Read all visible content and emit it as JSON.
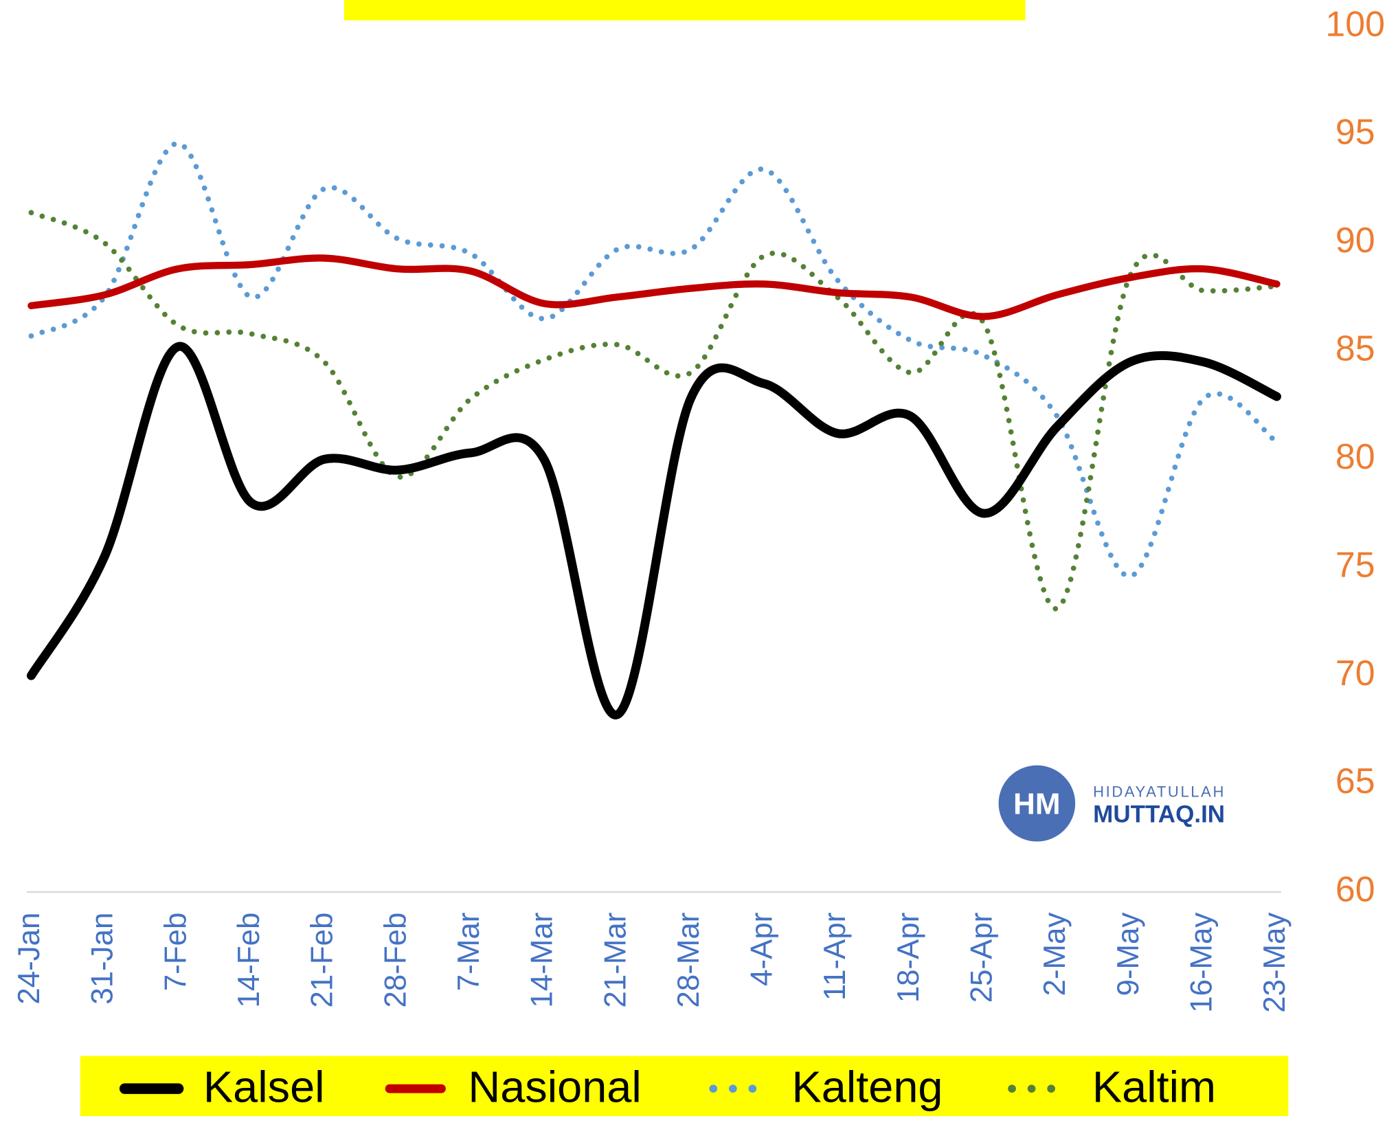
{
  "chart_data": {
    "type": "line",
    "categories": [
      "24-Jan",
      "31-Jan",
      "7-Feb",
      "14-Feb",
      "21-Feb",
      "28-Feb",
      "7-Mar",
      "14-Mar",
      "21-Mar",
      "28-Mar",
      "4-Apr",
      "11-Apr",
      "18-Apr",
      "25-Apr",
      "2-May",
      "9-May",
      "16-May",
      "23-May"
    ],
    "series": [
      {
        "name": "Kalsel",
        "color": "#000000",
        "values": [
          70,
          75.5,
          85.2,
          78,
          80,
          79.5,
          80.3,
          80,
          68.2,
          82.8,
          83.5,
          81.2,
          82,
          77.5,
          81.5,
          84.5,
          84.5,
          82.9
        ]
      },
      {
        "name": "Nasional",
        "color": "#c00000",
        "values": [
          87.1,
          87.6,
          88.8,
          89.0,
          89.3,
          88.8,
          88.7,
          87.2,
          87.5,
          87.9,
          88.1,
          87.7,
          87.5,
          86.6,
          87.6,
          88.4,
          88.8,
          88.1
        ]
      },
      {
        "name": "Kalteng",
        "color": "#5b9bd5",
        "values": [
          85.7,
          87.5,
          94.6,
          87.5,
          92.5,
          90.2,
          89.5,
          86.5,
          89.7,
          89.7,
          93.4,
          88.3,
          85.5,
          84.8,
          82.0,
          74.6,
          82.8,
          80.8
        ]
      },
      {
        "name": "Kaltim",
        "color": "#548235",
        "values": [
          91.4,
          90.0,
          86.2,
          85.8,
          84.5,
          79.2,
          82.8,
          84.6,
          85.3,
          84.0,
          89.4,
          87.5,
          84.0,
          86.3,
          73.1,
          88.5,
          87.8,
          88.0
        ]
      }
    ],
    "ylim": [
      60,
      100
    ],
    "yticks": [
      60,
      65,
      70,
      75,
      80,
      85,
      90,
      95,
      100
    ],
    "y_axis_side": "right",
    "tick_color": "#ed7d31",
    "category_color": "#4472c4",
    "legend": "bottom",
    "watermark": {
      "logo": "HM",
      "line1": "HIDAYATULLAH",
      "line2": "MUTTAQ.IN"
    }
  }
}
